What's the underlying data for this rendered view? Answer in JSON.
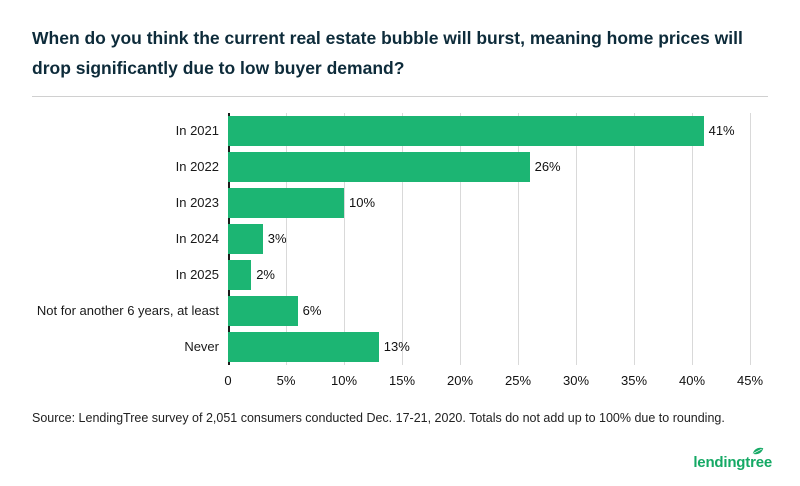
{
  "header": {
    "title": "When do you think the current real estate bubble will burst, meaning home prices will drop significantly due to low buyer demand?"
  },
  "chart_data": {
    "type": "bar",
    "orientation": "horizontal",
    "title": "When do you think the current real estate bubble will burst, meaning home prices will drop significantly due to low buyer demand?",
    "categories": [
      "In 2021",
      "In 2022",
      "In 2023",
      "In 2024",
      "In 2025",
      "Not for another 6 years, at least",
      "Never"
    ],
    "values": [
      41,
      26,
      10,
      3,
      2,
      6,
      13
    ],
    "value_labels": [
      "41%",
      "26%",
      "10%",
      "3%",
      "2%",
      "6%",
      "13%"
    ],
    "x_ticks": [
      "0",
      "5%",
      "10%",
      "15%",
      "20%",
      "25%",
      "30%",
      "35%",
      "40%",
      "45%"
    ],
    "xlim": [
      0,
      45
    ],
    "grid": true,
    "legend": "none",
    "bar_color": "#1cb573",
    "axis_color": "#1a1a1a"
  },
  "footer": {
    "source": "Source: LendingTree survey of 2,051 consumers conducted Dec. 17-21, 2020. Totals do not add up to 100% due to rounding.",
    "logo_text": "lendingtree",
    "logo_color": "#15a965"
  }
}
